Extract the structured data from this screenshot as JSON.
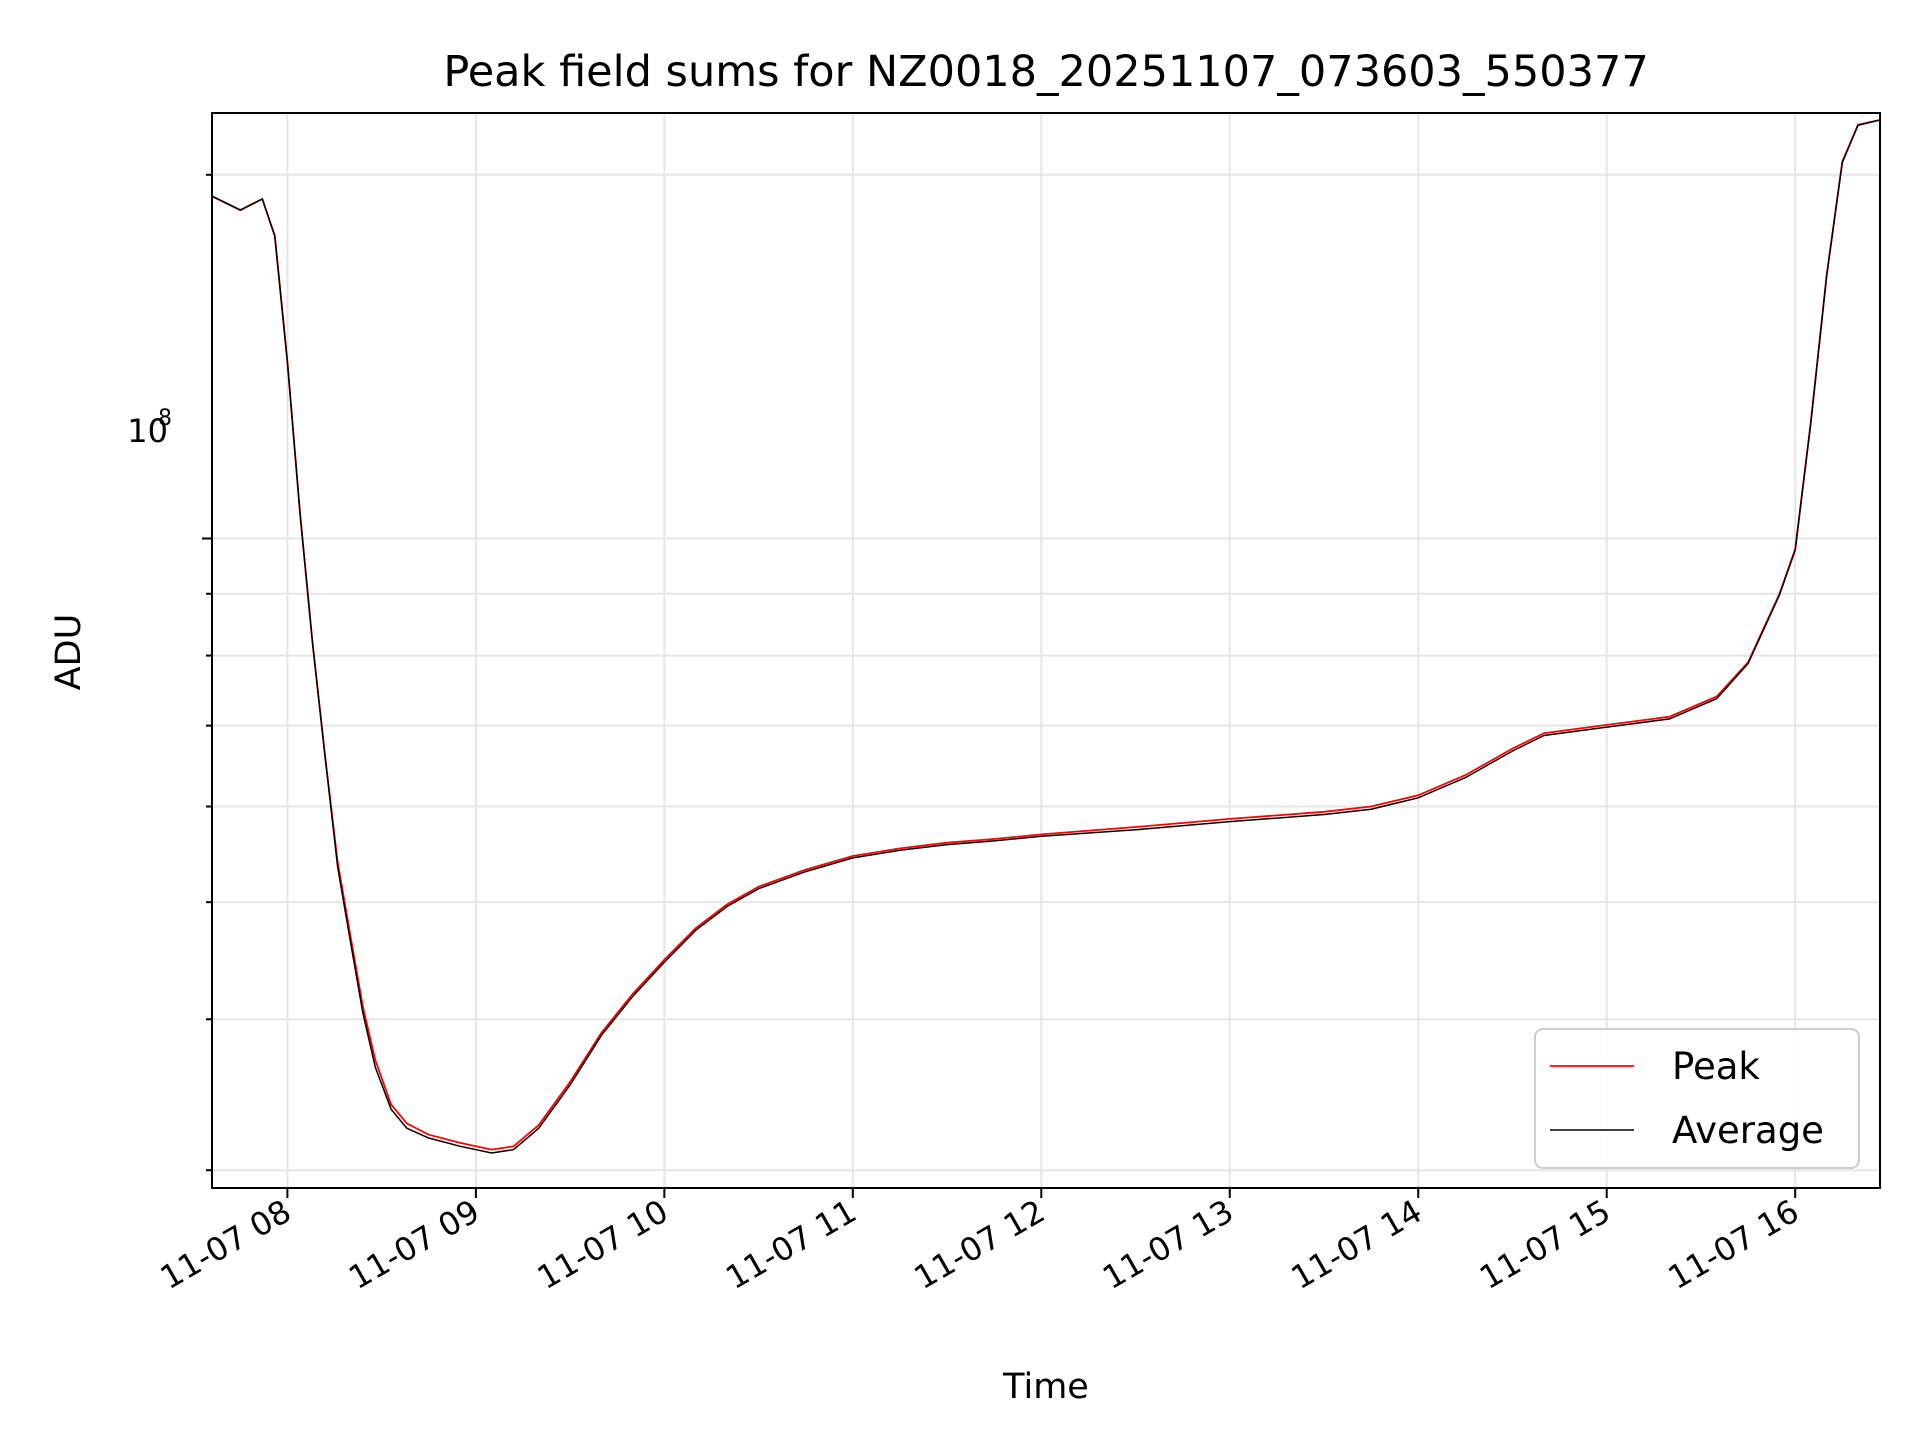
{
  "chart_data": {
    "type": "line",
    "title": "Peak field sums for NZ0018_20251107_073603_550377",
    "xlabel": "Time",
    "ylabel": "ADU",
    "x_tick_labels": [
      "11-07 08",
      "11-07 09",
      "11-07 10",
      "11-07 11",
      "11-07 12",
      "11-07 13",
      "11-07 14",
      "11-07 15",
      "11-07 16"
    ],
    "y_tick_label_base": "10",
    "y_tick_label_exponent": "8",
    "yscale": "log",
    "xlim": [
      "2025-11-07T07:36",
      "2025-11-07T16:27"
    ],
    "ylim": [
      29000000,
      225000000
    ],
    "grid": true,
    "legend_position": "lower-right",
    "series": [
      {
        "name": "Peak",
        "color": "#ff0000",
        "x": [
          "2025-11-07T07:36",
          "2025-11-07T07:45",
          "2025-11-07T07:52",
          "2025-11-07T07:56",
          "2025-11-07T08:00",
          "2025-11-07T08:04",
          "2025-11-07T08:08",
          "2025-11-07T08:12",
          "2025-11-07T08:16",
          "2025-11-07T08:20",
          "2025-11-07T08:24",
          "2025-11-07T08:28",
          "2025-11-07T08:33",
          "2025-11-07T08:38",
          "2025-11-07T08:45",
          "2025-11-07T08:55",
          "2025-11-07T09:05",
          "2025-11-07T09:12",
          "2025-11-07T09:20",
          "2025-11-07T09:30",
          "2025-11-07T09:40",
          "2025-11-07T09:50",
          "2025-11-07T10:00",
          "2025-11-07T10:10",
          "2025-11-07T10:20",
          "2025-11-07T10:30",
          "2025-11-07T10:45",
          "2025-11-07T11:00",
          "2025-11-07T11:15",
          "2025-11-07T11:30",
          "2025-11-07T11:45",
          "2025-11-07T12:00",
          "2025-11-07T12:30",
          "2025-11-07T13:00",
          "2025-11-07T13:30",
          "2025-11-07T13:45",
          "2025-11-07T14:00",
          "2025-11-07T14:15",
          "2025-11-07T14:30",
          "2025-11-07T14:40",
          "2025-11-07T15:00",
          "2025-11-07T15:20",
          "2025-11-07T15:35",
          "2025-11-07T15:45",
          "2025-11-07T15:55",
          "2025-11-07T16:00",
          "2025-11-07T16:05",
          "2025-11-07T16:10",
          "2025-11-07T16:15",
          "2025-11-07T16:20",
          "2025-11-07T16:27"
        ],
        "y": [
          192000000,
          187000000,
          191000000,
          178000000,
          140000000,
          105000000,
          82000000,
          66000000,
          54000000,
          47000000,
          41000000,
          37000000,
          34000000,
          32800000,
          32100000,
          31600000,
          31200000,
          31400000,
          32700000,
          35500000,
          39000000,
          42000000,
          44800000,
          47600000,
          49800000,
          51500000,
          53200000,
          54600000,
          55400000,
          56000000,
          56400000,
          56900000,
          57700000,
          58600000,
          59400000,
          60000000,
          61300000,
          63700000,
          67000000,
          69000000,
          70100000,
          71200000,
          74000000,
          79000000,
          90000000,
          98000000,
          125000000,
          165000000,
          205000000,
          220000000,
          222000000
        ]
      },
      {
        "name": "Average",
        "color": "#000000",
        "x": [
          "2025-11-07T07:36",
          "2025-11-07T07:45",
          "2025-11-07T07:52",
          "2025-11-07T07:56",
          "2025-11-07T08:00",
          "2025-11-07T08:04",
          "2025-11-07T08:08",
          "2025-11-07T08:12",
          "2025-11-07T08:16",
          "2025-11-07T08:20",
          "2025-11-07T08:24",
          "2025-11-07T08:28",
          "2025-11-07T08:33",
          "2025-11-07T08:38",
          "2025-11-07T08:45",
          "2025-11-07T08:55",
          "2025-11-07T09:05",
          "2025-11-07T09:12",
          "2025-11-07T09:20",
          "2025-11-07T09:30",
          "2025-11-07T09:40",
          "2025-11-07T09:50",
          "2025-11-07T10:00",
          "2025-11-07T10:10",
          "2025-11-07T10:20",
          "2025-11-07T10:30",
          "2025-11-07T10:45",
          "2025-11-07T11:00",
          "2025-11-07T11:15",
          "2025-11-07T11:30",
          "2025-11-07T11:45",
          "2025-11-07T12:00",
          "2025-11-07T12:30",
          "2025-11-07T13:00",
          "2025-11-07T13:30",
          "2025-11-07T13:45",
          "2025-11-07T14:00",
          "2025-11-07T14:15",
          "2025-11-07T14:30",
          "2025-11-07T14:40",
          "2025-11-07T15:00",
          "2025-11-07T15:20",
          "2025-11-07T15:35",
          "2025-11-07T15:45",
          "2025-11-07T15:55",
          "2025-11-07T16:00",
          "2025-11-07T16:05",
          "2025-11-07T16:10",
          "2025-11-07T16:15",
          "2025-11-07T16:20",
          "2025-11-07T16:27"
        ],
        "y": [
          192000000,
          187000000,
          191000000,
          178000000,
          140000000,
          105000000,
          82000000,
          66000000,
          53500000,
          46500000,
          40500000,
          36500000,
          33700000,
          32500000,
          31900000,
          31400000,
          31000000,
          31200000,
          32500000,
          35300000,
          38800000,
          41800000,
          44600000,
          47400000,
          49600000,
          51300000,
          53000000,
          54400000,
          55200000,
          55800000,
          56200000,
          56700000,
          57400000,
          58300000,
          59100000,
          59700000,
          61000000,
          63400000,
          66700000,
          68700000,
          69800000,
          70900000,
          73700000,
          78800000,
          89800000,
          97800000,
          124800000,
          164800000,
          204800000,
          219800000,
          222000000
        ]
      }
    ]
  }
}
